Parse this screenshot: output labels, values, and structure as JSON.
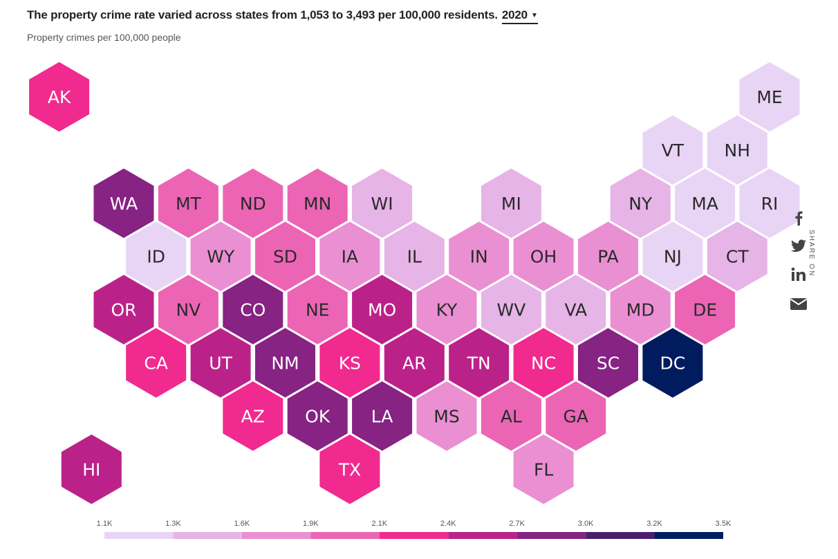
{
  "title": "The property crime rate varied across states from 1,053 to 3,493 per 100,000 residents.",
  "year_select": {
    "value": "2020"
  },
  "subtitle": "Property crimes per 100,000 people",
  "share": {
    "label": "SHARE ON",
    "icons": [
      "facebook-icon",
      "twitter-icon",
      "linkedin-icon",
      "email-icon"
    ]
  },
  "chart_data": {
    "type": "heatmap",
    "subtitle": "Property crimes per 100,000 people",
    "legend": {
      "ticks": [
        "1.1K",
        "1.3K",
        "1.6K",
        "1.9K",
        "2.1K",
        "2.4K",
        "2.7K",
        "3.0K",
        "3.2K",
        "3.5K"
      ],
      "colors": [
        "#e8d5f5",
        "#e6b4e6",
        "#eb8fd3",
        "#ec65b5",
        "#f02a8e",
        "#bb2289",
        "#862383",
        "#4b206e",
        "#001c5e"
      ],
      "placement": "bottom"
    },
    "states": [
      {
        "id": "AK",
        "row": 0,
        "col": -2,
        "bin": 4
      },
      {
        "id": "ME",
        "row": 0,
        "col": 20,
        "bin": 0
      },
      {
        "id": "VT",
        "row": 1,
        "col": 17,
        "bin": 0
      },
      {
        "id": "NH",
        "row": 1,
        "col": 19,
        "bin": 0
      },
      {
        "id": "WA",
        "row": 2,
        "col": 0,
        "bin": 6
      },
      {
        "id": "MT",
        "row": 2,
        "col": 2,
        "bin": 3
      },
      {
        "id": "ND",
        "row": 2,
        "col": 4,
        "bin": 3
      },
      {
        "id": "MN",
        "row": 2,
        "col": 6,
        "bin": 3
      },
      {
        "id": "WI",
        "row": 2,
        "col": 8,
        "bin": 1
      },
      {
        "id": "MI",
        "row": 2,
        "col": 12,
        "bin": 1
      },
      {
        "id": "NY",
        "row": 2,
        "col": 16,
        "bin": 1
      },
      {
        "id": "MA",
        "row": 2,
        "col": 18,
        "bin": 0
      },
      {
        "id": "RI",
        "row": 2,
        "col": 20,
        "bin": 0
      },
      {
        "id": "ID",
        "row": 3,
        "col": 1,
        "bin": 0
      },
      {
        "id": "WY",
        "row": 3,
        "col": 3,
        "bin": 2
      },
      {
        "id": "SD",
        "row": 3,
        "col": 5,
        "bin": 3
      },
      {
        "id": "IA",
        "row": 3,
        "col": 7,
        "bin": 2
      },
      {
        "id": "IL",
        "row": 3,
        "col": 9,
        "bin": 1
      },
      {
        "id": "IN",
        "row": 3,
        "col": 11,
        "bin": 2
      },
      {
        "id": "OH",
        "row": 3,
        "col": 13,
        "bin": 2
      },
      {
        "id": "PA",
        "row": 3,
        "col": 15,
        "bin": 2
      },
      {
        "id": "NJ",
        "row": 3,
        "col": 17,
        "bin": 0
      },
      {
        "id": "CT",
        "row": 3,
        "col": 19,
        "bin": 1
      },
      {
        "id": "OR",
        "row": 4,
        "col": 0,
        "bin": 5
      },
      {
        "id": "NV",
        "row": 4,
        "col": 2,
        "bin": 3
      },
      {
        "id": "CO",
        "row": 4,
        "col": 4,
        "bin": 6
      },
      {
        "id": "NE",
        "row": 4,
        "col": 6,
        "bin": 3
      },
      {
        "id": "MO",
        "row": 4,
        "col": 8,
        "bin": 5
      },
      {
        "id": "KY",
        "row": 4,
        "col": 10,
        "bin": 2
      },
      {
        "id": "WV",
        "row": 4,
        "col": 12,
        "bin": 1
      },
      {
        "id": "VA",
        "row": 4,
        "col": 14,
        "bin": 1
      },
      {
        "id": "MD",
        "row": 4,
        "col": 16,
        "bin": 2
      },
      {
        "id": "DE",
        "row": 4,
        "col": 18,
        "bin": 3
      },
      {
        "id": "CA",
        "row": 5,
        "col": 1,
        "bin": 4
      },
      {
        "id": "UT",
        "row": 5,
        "col": 3,
        "bin": 5
      },
      {
        "id": "NM",
        "row": 5,
        "col": 5,
        "bin": 6
      },
      {
        "id": "KS",
        "row": 5,
        "col": 7,
        "bin": 4
      },
      {
        "id": "AR",
        "row": 5,
        "col": 9,
        "bin": 5
      },
      {
        "id": "TN",
        "row": 5,
        "col": 11,
        "bin": 5
      },
      {
        "id": "NC",
        "row": 5,
        "col": 13,
        "bin": 4
      },
      {
        "id": "SC",
        "row": 5,
        "col": 15,
        "bin": 6
      },
      {
        "id": "DC",
        "row": 5,
        "col": 17,
        "bin": 8
      },
      {
        "id": "AZ",
        "row": 6,
        "col": 4,
        "bin": 4
      },
      {
        "id": "OK",
        "row": 6,
        "col": 6,
        "bin": 6
      },
      {
        "id": "LA",
        "row": 6,
        "col": 8,
        "bin": 6
      },
      {
        "id": "MS",
        "row": 6,
        "col": 10,
        "bin": 2
      },
      {
        "id": "AL",
        "row": 6,
        "col": 12,
        "bin": 3
      },
      {
        "id": "GA",
        "row": 6,
        "col": 14,
        "bin": 3
      },
      {
        "id": "HI",
        "row": 7,
        "col": -1,
        "bin": 5
      },
      {
        "id": "TX",
        "row": 7,
        "col": 7,
        "bin": 4
      },
      {
        "id": "FL",
        "row": 7,
        "col": 13,
        "bin": 2
      }
    ]
  }
}
